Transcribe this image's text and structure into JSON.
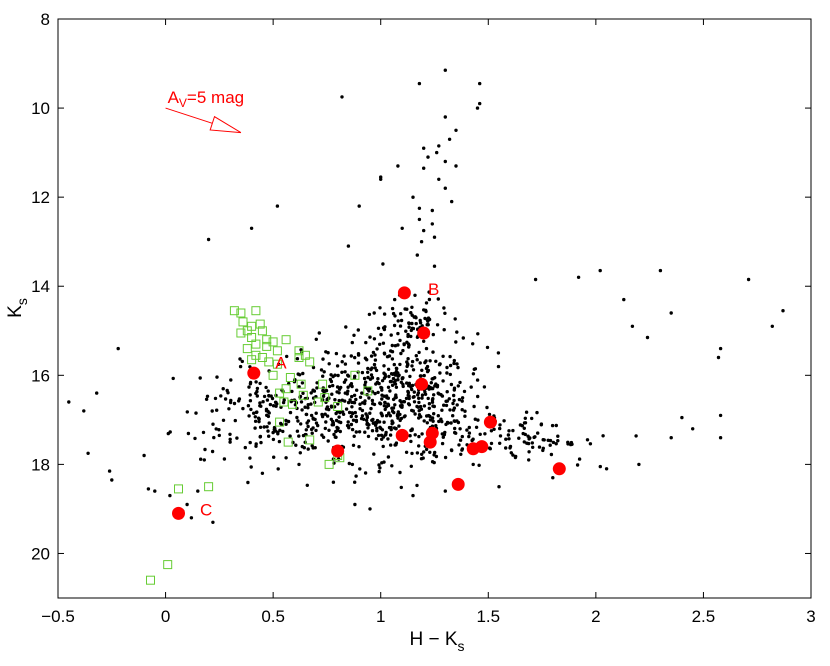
{
  "chart_data": {
    "type": "scatter",
    "xlabel_main": "H − K",
    "xlabel_sub": "s",
    "ylabel_main": "K",
    "ylabel_sub": "s",
    "xlim": [
      -0.5,
      3
    ],
    "ylim": [
      21,
      8
    ],
    "y_inverted": true,
    "xticks": [
      -0.5,
      0,
      0.5,
      1,
      1.5,
      2,
      2.5,
      3
    ],
    "xtick_labels": [
      "−0.5",
      "0",
      "0.5",
      "1",
      "1.5",
      "2",
      "2.5",
      "3"
    ],
    "yticks": [
      8,
      10,
      12,
      14,
      16,
      18,
      20
    ],
    "ytick_labels": [
      "8",
      "10",
      "12",
      "14",
      "16",
      "18",
      "20"
    ],
    "grid": false,
    "colors": {
      "field": "#000000",
      "green": "#66cc33",
      "red": "#ff0000"
    },
    "reddening_vector": {
      "label_main": "A",
      "label_sub": "V",
      "label_rest": "=5 mag",
      "x0": 0.0,
      "y0": 10.0,
      "x1": 0.35,
      "y1": 10.55
    },
    "series": [
      {
        "marker": "dot",
        "color": "#000000",
        "points": [
          [
            1.3,
            9.15
          ],
          [
            1.18,
            9.45
          ],
          [
            1.46,
            9.45
          ],
          [
            0.82,
            9.75
          ],
          [
            1.45,
            10.0
          ],
          [
            1.46,
            9.9
          ],
          [
            1.3,
            10.2
          ],
          [
            1.35,
            10.5
          ],
          [
            1.32,
            10.7
          ],
          [
            1.27,
            10.85
          ],
          [
            1.2,
            10.9
          ],
          [
            1.26,
            11.0
          ],
          [
            1.3,
            11.2
          ],
          [
            1.22,
            11.1
          ],
          [
            1.35,
            11.3
          ],
          [
            1.27,
            11.6
          ],
          [
            1.2,
            11.35
          ],
          [
            1.08,
            11.3
          ],
          [
            1.3,
            11.8
          ],
          [
            1.33,
            12.1
          ],
          [
            1.15,
            12.0
          ],
          [
            1.18,
            12.25
          ],
          [
            1.24,
            12.3
          ],
          [
            1.18,
            12.5
          ],
          [
            1.24,
            12.6
          ],
          [
            1.2,
            12.75
          ],
          [
            1.25,
            12.9
          ],
          [
            1.19,
            13.0
          ],
          [
            1.1,
            12.7
          ],
          [
            1.17,
            13.3
          ],
          [
            1.0,
            11.55
          ],
          [
            1.0,
            11.6
          ],
          [
            0.9,
            12.2
          ],
          [
            0.85,
            13.1
          ],
          [
            0.52,
            12.2
          ],
          [
            0.4,
            12.7
          ],
          [
            0.2,
            12.95
          ],
          [
            1.01,
            13.5
          ],
          [
            1.25,
            13.55
          ],
          [
            1.72,
            13.85
          ],
          [
            1.92,
            13.8
          ],
          [
            2.02,
            13.65
          ],
          [
            2.13,
            14.3
          ],
          [
            2.3,
            13.65
          ],
          [
            2.35,
            14.6
          ],
          [
            2.71,
            13.85
          ],
          [
            2.82,
            14.9
          ],
          [
            2.87,
            14.55
          ],
          [
            2.58,
            15.4
          ],
          [
            2.57,
            15.6
          ],
          [
            2.17,
            14.9
          ],
          [
            2.24,
            15.15
          ],
          [
            2.58,
            16.9
          ],
          [
            2.58,
            17.4
          ],
          [
            -0.45,
            16.6
          ],
          [
            -0.38,
            16.8
          ],
          [
            -0.32,
            16.4
          ],
          [
            -0.36,
            17.75
          ],
          [
            -0.26,
            18.15
          ],
          [
            -0.25,
            18.35
          ],
          [
            -0.22,
            15.4
          ],
          [
            -0.1,
            17.8
          ],
          [
            -0.05,
            18.6
          ],
          [
            -0.08,
            18.55
          ],
          [
            0.1,
            18.9
          ],
          [
            0.12,
            19.2
          ],
          [
            0.02,
            18.7
          ],
          [
            0.08,
            19.05
          ],
          [
            0.15,
            18.6
          ],
          [
            0.22,
            19.3
          ],
          [
            0.45,
            18.2
          ],
          [
            0.18,
            17.9
          ],
          [
            0.3,
            17.5
          ],
          [
            0.62,
            18.0
          ],
          [
            0.78,
            18.4
          ],
          [
            0.88,
            18.9
          ],
          [
            0.95,
            19.0
          ],
          [
            1.15,
            18.7
          ],
          [
            1.3,
            18.6
          ],
          [
            1.55,
            18.5
          ],
          [
            1.8,
            18.3
          ],
          [
            2.05,
            18.1
          ],
          [
            2.2,
            18.0
          ],
          [
            2.35,
            17.4
          ],
          [
            2.45,
            17.2
          ],
          [
            2.4,
            16.95
          ]
        ],
        "random_cloud": {
          "count": 1000,
          "seed": 7
        }
      },
      {
        "marker": "open-square",
        "color": "#66cc33",
        "points": [
          [
            0.32,
            14.55
          ],
          [
            0.35,
            14.6
          ],
          [
            0.42,
            14.55
          ],
          [
            0.36,
            14.8
          ],
          [
            0.44,
            14.85
          ],
          [
            0.38,
            15.0
          ],
          [
            0.4,
            14.9
          ],
          [
            0.45,
            15.0
          ],
          [
            0.35,
            15.05
          ],
          [
            0.4,
            15.15
          ],
          [
            0.47,
            15.2
          ],
          [
            0.5,
            15.25
          ],
          [
            0.56,
            15.2
          ],
          [
            0.42,
            15.3
          ],
          [
            0.38,
            15.4
          ],
          [
            0.47,
            15.35
          ],
          [
            0.52,
            15.45
          ],
          [
            0.42,
            15.55
          ],
          [
            0.45,
            15.6
          ],
          [
            0.4,
            15.65
          ],
          [
            0.48,
            15.7
          ],
          [
            0.62,
            15.45
          ],
          [
            0.65,
            15.55
          ],
          [
            0.62,
            15.6
          ],
          [
            0.67,
            15.7
          ],
          [
            0.52,
            15.75
          ],
          [
            0.5,
            16.0
          ],
          [
            0.58,
            16.05
          ],
          [
            0.73,
            16.2
          ],
          [
            0.63,
            16.2
          ],
          [
            0.56,
            16.3
          ],
          [
            0.53,
            16.4
          ],
          [
            0.64,
            16.45
          ],
          [
            0.74,
            16.5
          ],
          [
            0.71,
            16.6
          ],
          [
            0.55,
            16.6
          ],
          [
            0.59,
            16.65
          ],
          [
            0.8,
            16.7
          ],
          [
            0.88,
            16.0
          ],
          [
            0.94,
            16.35
          ],
          [
            0.53,
            17.05
          ],
          [
            0.67,
            17.45
          ],
          [
            0.57,
            17.5
          ],
          [
            0.76,
            18.0
          ],
          [
            0.8,
            17.8
          ],
          [
            0.81,
            17.85
          ],
          [
            0.06,
            18.55
          ],
          [
            0.2,
            18.5
          ],
          [
            0.01,
            20.25
          ],
          [
            -0.07,
            20.6
          ]
        ]
      },
      {
        "marker": "filled-circle",
        "color": "#ff0000",
        "points": [
          [
            0.41,
            15.95
          ],
          [
            1.11,
            14.15
          ],
          [
            1.2,
            15.05
          ],
          [
            1.19,
            16.2
          ],
          [
            1.1,
            17.35
          ],
          [
            1.24,
            17.3
          ],
          [
            1.23,
            17.5
          ],
          [
            1.43,
            17.65
          ],
          [
            1.47,
            17.6
          ],
          [
            1.51,
            17.05
          ],
          [
            1.83,
            18.1
          ],
          [
            1.36,
            18.45
          ],
          [
            0.8,
            17.7
          ],
          [
            0.06,
            19.1
          ]
        ]
      }
    ],
    "annotations": [
      {
        "text": "A",
        "x": 0.51,
        "y": 15.85
      },
      {
        "text": "B",
        "x": 1.22,
        "y": 14.2
      },
      {
        "text": "C",
        "x": 0.16,
        "y": 19.15
      }
    ]
  }
}
